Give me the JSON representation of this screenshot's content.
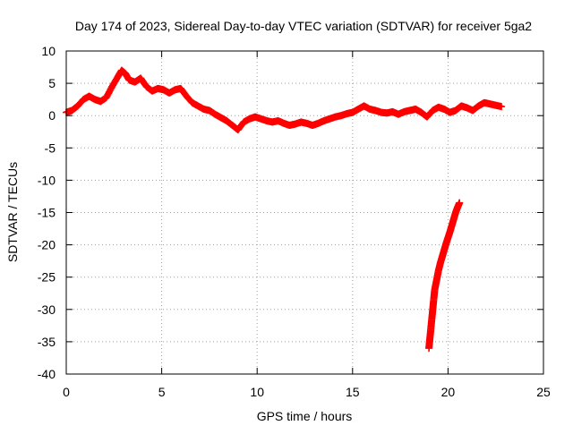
{
  "chart_data": {
    "type": "scatter",
    "title": "Day 174 of 2023, Sidereal Day-to-day VTEC variation (SDTVAR) for receiver 5ga2",
    "xlabel": "GPS time / hours",
    "ylabel": "SDTVAR / TECUs",
    "xlim": [
      0,
      25
    ],
    "ylim": [
      -40,
      10
    ],
    "xticks": [
      0,
      5,
      10,
      15,
      20,
      25
    ],
    "yticks": [
      10,
      5,
      0,
      -5,
      -10,
      -15,
      -20,
      -25,
      -30,
      -35,
      -40
    ],
    "grid": true,
    "marker": "+",
    "series": [
      {
        "name": "main-trace",
        "color": "#ff0000",
        "x": [
          0.0,
          0.3,
          0.6,
          0.9,
          1.2,
          1.5,
          1.8,
          2.1,
          2.4,
          2.7,
          2.9,
          3.1,
          3.3,
          3.6,
          3.9,
          4.2,
          4.5,
          4.8,
          5.1,
          5.4,
          5.7,
          6.0,
          6.3,
          6.6,
          6.9,
          7.2,
          7.5,
          7.8,
          8.1,
          8.4,
          8.7,
          9.0,
          9.3,
          9.6,
          9.9,
          10.2,
          10.5,
          10.8,
          11.1,
          11.4,
          11.7,
          12.0,
          12.3,
          12.6,
          12.9,
          13.2,
          13.5,
          13.8,
          14.1,
          14.4,
          14.7,
          15.0,
          15.3,
          15.6,
          15.9,
          16.2,
          16.5,
          16.8,
          17.1,
          17.4,
          17.7,
          18.0,
          18.3,
          18.6,
          18.9,
          19.2,
          19.5,
          19.8,
          20.1,
          20.4,
          20.7,
          21.0,
          21.3,
          21.6,
          21.9,
          22.2,
          22.5,
          22.8
        ],
        "y": [
          0.5,
          0.8,
          1.5,
          2.5,
          3.0,
          2.5,
          2.2,
          2.8,
          4.5,
          6.0,
          7.0,
          6.5,
          5.5,
          5.2,
          5.8,
          4.5,
          3.8,
          4.2,
          4.0,
          3.5,
          4.0,
          4.2,
          3.0,
          2.0,
          1.5,
          1.0,
          0.8,
          0.2,
          -0.3,
          -0.8,
          -1.5,
          -2.2,
          -1.0,
          -0.5,
          -0.2,
          -0.5,
          -0.8,
          -1.0,
          -0.8,
          -1.2,
          -1.5,
          -1.3,
          -1.0,
          -1.2,
          -1.5,
          -1.2,
          -0.8,
          -0.5,
          -0.2,
          0.0,
          0.3,
          0.5,
          1.0,
          1.5,
          1.0,
          0.8,
          0.5,
          0.4,
          0.6,
          0.2,
          0.6,
          0.8,
          1.0,
          0.5,
          -0.2,
          0.8,
          1.3,
          1.0,
          0.5,
          0.8,
          1.5,
          1.2,
          0.8,
          1.5,
          2.0,
          1.8,
          1.6,
          1.4
        ]
      },
      {
        "name": "descending-arc",
        "color": "#ff0000",
        "x": [
          19.0,
          19.05,
          19.1,
          19.15,
          19.2,
          19.25,
          19.3,
          19.4,
          19.5,
          19.6,
          19.7,
          19.8,
          19.9,
          20.0,
          20.1,
          20.2,
          20.3,
          20.4,
          20.5,
          20.6
        ],
        "y": [
          -36.0,
          -34.5,
          -33.0,
          -31.5,
          -30.0,
          -28.5,
          -27.0,
          -25.5,
          -24.0,
          -22.8,
          -21.8,
          -20.8,
          -19.8,
          -18.9,
          -18.0,
          -17.0,
          -16.0,
          -15.0,
          -14.2,
          -13.5
        ]
      }
    ]
  }
}
